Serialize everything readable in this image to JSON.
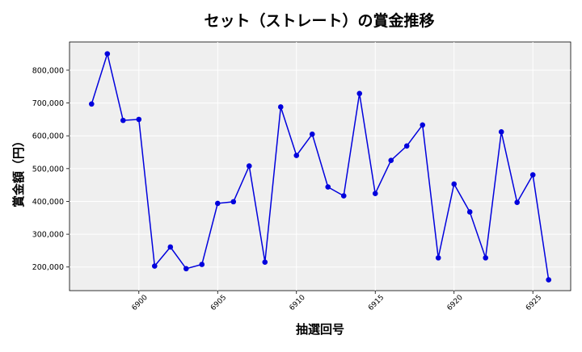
{
  "chart_data": {
    "type": "line",
    "title": "セット（ストレート）の賞金推移",
    "xlabel": "抽選回号",
    "ylabel": "賞金額（円）",
    "x": [
      6897,
      6898,
      6899,
      6900,
      6901,
      6902,
      6903,
      6904,
      6905,
      6906,
      6907,
      6908,
      6909,
      6910,
      6911,
      6912,
      6913,
      6914,
      6915,
      6916,
      6917,
      6918,
      6919,
      6920,
      6921,
      6922,
      6923,
      6924,
      6925,
      6926
    ],
    "values": [
      697000,
      850000,
      647000,
      650000,
      203000,
      261000,
      195000,
      208000,
      394000,
      399000,
      508000,
      215000,
      688000,
      540000,
      605000,
      444000,
      417000,
      729000,
      424000,
      525000,
      569000,
      633000,
      228000,
      453000,
      368000,
      228000,
      612000,
      397000,
      481000,
      161000
    ],
    "xlim": [
      6895.6,
      6927.4
    ],
    "ylim": [
      128000,
      886000
    ],
    "xticks": [
      6900,
      6905,
      6910,
      6915,
      6920,
      6925
    ],
    "xtick_labels": [
      "6900",
      "6905",
      "6910",
      "6915",
      "6920",
      "6925"
    ],
    "yticks": [
      200000,
      300000,
      400000,
      500000,
      600000,
      700000,
      800000
    ],
    "ytick_labels": [
      "200,000",
      "300,000",
      "400,000",
      "500,000",
      "600,000",
      "700,000",
      "800,000"
    ],
    "grid": true,
    "colors": {
      "line": "#0000dd",
      "marker": "#0000dd",
      "plot_bg": "#efefef",
      "grid": "#ffffff"
    }
  }
}
